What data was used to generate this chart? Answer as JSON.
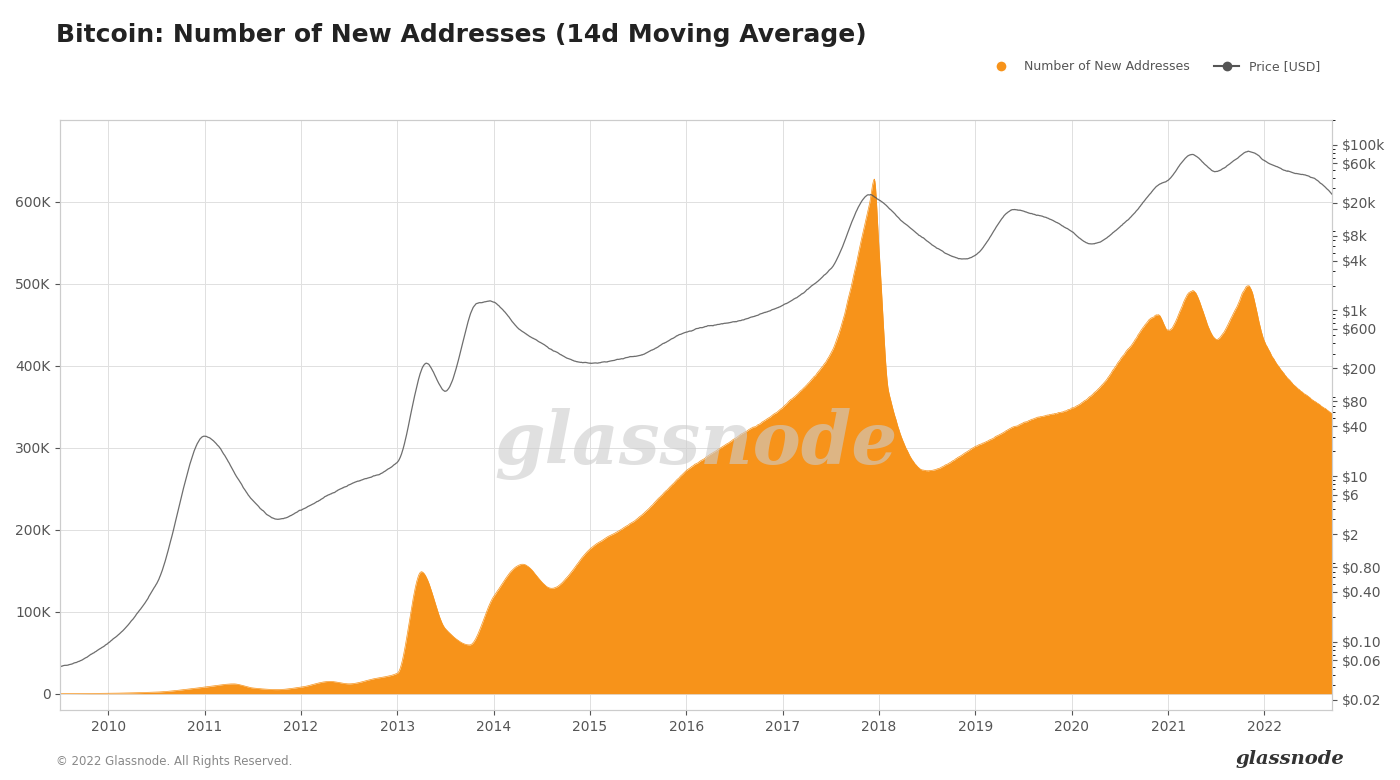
{
  "title": "Bitcoin: Number of New Addresses (14d Moving Average)",
  "bg_color": "#ffffff",
  "plot_bg_color": "#ffffff",
  "orange_color": "#F7931A",
  "price_color": "#555555",
  "left_yticks": [
    0,
    100000,
    200000,
    300000,
    400000,
    500000,
    600000
  ],
  "left_yticklabels": [
    "0",
    "100K",
    "200K",
    "300K",
    "400K",
    "500K",
    "600K"
  ],
  "right_yticks_log": [
    0.02,
    0.06,
    0.1,
    0.4,
    0.8,
    2,
    6,
    10,
    40,
    80,
    200,
    600,
    1000,
    4000,
    8000,
    20000,
    60000,
    100000
  ],
  "right_yticklabels": [
    "$0.02",
    "$0.06",
    "$0.10",
    "$0.40",
    "$0.80",
    "$2",
    "$6",
    "$10",
    "$40",
    "$80",
    "$200",
    "$600",
    "$1k",
    "$4k",
    "$8k",
    "$20k",
    "$60k",
    "$100k"
  ],
  "xlabel_years": [
    "2010",
    "2011",
    "2012",
    "2013",
    "2014",
    "2015",
    "2016",
    "2017",
    "2018",
    "2019",
    "2020",
    "2021",
    "2022"
  ],
  "watermark": "glassnode",
  "footer_left": "© 2022 Glassnode. All Rights Reserved.",
  "footer_right": "glassnode",
  "legend_entries": [
    "Number of New Addresses",
    "Price [USD]"
  ]
}
